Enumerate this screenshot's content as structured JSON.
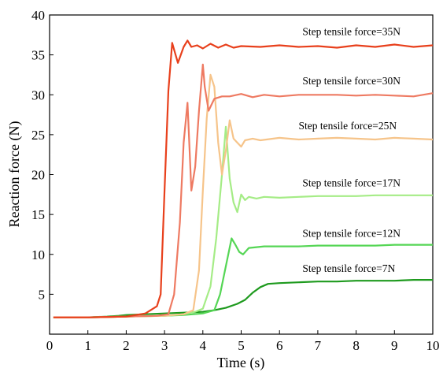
{
  "chart_data": {
    "type": "line",
    "title": "",
    "xlabel": "Time (s)",
    "ylabel": "Reaction force (N)",
    "xlim": [
      0,
      10
    ],
    "ylim": [
      0,
      40
    ],
    "x_ticks": [
      0,
      1,
      2,
      3,
      4,
      5,
      6,
      7,
      8,
      9,
      10
    ],
    "y_ticks": [
      5,
      10,
      15,
      20,
      25,
      30,
      35,
      40
    ],
    "grid": false,
    "legend": "none",
    "series": [
      {
        "name": "Step tensile force=7N",
        "color": "#1e9a1e",
        "x": [
          0.1,
          1.0,
          1.5,
          1.8,
          2.0,
          2.5,
          3.0,
          3.5,
          4.0,
          4.3,
          4.6,
          4.9,
          5.1,
          5.3,
          5.5,
          5.7,
          6.0,
          6.5,
          7.0,
          7.5,
          8.0,
          8.5,
          9.0,
          9.5,
          10.0
        ],
        "y": [
          2.1,
          2.1,
          2.2,
          2.3,
          2.4,
          2.5,
          2.6,
          2.7,
          2.8,
          3.0,
          3.3,
          3.8,
          4.3,
          5.2,
          5.9,
          6.3,
          6.4,
          6.5,
          6.6,
          6.6,
          6.7,
          6.7,
          6.7,
          6.8,
          6.8
        ]
      },
      {
        "name": "Step tensile force=12N",
        "color": "#55d655",
        "x": [
          0.1,
          1.0,
          2.0,
          3.0,
          3.5,
          4.0,
          4.3,
          4.45,
          4.6,
          4.75,
          4.85,
          4.95,
          5.05,
          5.2,
          5.4,
          5.6,
          6.0,
          6.5,
          7.0,
          7.5,
          8.0,
          8.5,
          9.0,
          9.5,
          10.0
        ],
        "y": [
          2.1,
          2.1,
          2.2,
          2.3,
          2.4,
          2.6,
          3.0,
          5.0,
          8.5,
          12.0,
          11.2,
          10.3,
          10.0,
          10.8,
          10.9,
          11.0,
          11.0,
          11.0,
          11.1,
          11.1,
          11.1,
          11.1,
          11.2,
          11.2,
          11.2
        ]
      },
      {
        "name": "Step tensile force=17N",
        "color": "#a5ec86",
        "x": [
          0.1,
          1.0,
          2.0,
          3.0,
          3.5,
          3.8,
          4.0,
          4.2,
          4.35,
          4.5,
          4.6,
          4.7,
          4.8,
          4.9,
          5.0,
          5.1,
          5.2,
          5.4,
          5.6,
          6.0,
          6.5,
          7.0,
          7.5,
          8.0,
          8.5,
          9.0,
          9.5,
          10.0
        ],
        "y": [
          2.1,
          2.1,
          2.2,
          2.3,
          2.5,
          2.8,
          3.2,
          6.0,
          12.0,
          20.0,
          26.0,
          19.5,
          16.5,
          15.3,
          17.5,
          16.8,
          17.2,
          17.0,
          17.2,
          17.1,
          17.2,
          17.3,
          17.3,
          17.3,
          17.4,
          17.4,
          17.4,
          17.4
        ]
      },
      {
        "name": "Step tensile force=25N",
        "color": "#f6c48a",
        "x": [
          0.1,
          1.0,
          2.0,
          3.0,
          3.5,
          3.75,
          3.9,
          4.0,
          4.1,
          4.2,
          4.3,
          4.4,
          4.5,
          4.6,
          4.7,
          4.8,
          4.9,
          5.0,
          5.1,
          5.3,
          5.5,
          6.0,
          6.5,
          7.0,
          7.5,
          8.0,
          8.5,
          9.0,
          9.5,
          10.0
        ],
        "y": [
          2.1,
          2.1,
          2.2,
          2.3,
          2.5,
          3.0,
          8.0,
          18.0,
          27.0,
          32.5,
          31.0,
          24.0,
          20.0,
          23.0,
          26.8,
          24.5,
          24.0,
          23.5,
          24.3,
          24.5,
          24.3,
          24.6,
          24.4,
          24.5,
          24.6,
          24.5,
          24.4,
          24.6,
          24.5,
          24.4
        ]
      },
      {
        "name": "Step tensile force=30N",
        "color": "#ee7a62",
        "x": [
          0.1,
          1.0,
          2.0,
          2.8,
          3.1,
          3.25,
          3.4,
          3.5,
          3.6,
          3.7,
          3.8,
          3.9,
          4.0,
          4.05,
          4.15,
          4.3,
          4.5,
          4.7,
          5.0,
          5.3,
          5.6,
          6.0,
          6.5,
          7.0,
          7.5,
          8.0,
          8.5,
          9.0,
          9.5,
          10.0
        ],
        "y": [
          2.1,
          2.1,
          2.2,
          2.3,
          2.5,
          5.0,
          14.0,
          24.0,
          29.0,
          18.0,
          21.0,
          28.0,
          33.8,
          31.0,
          28.0,
          29.5,
          29.8,
          29.8,
          30.1,
          29.7,
          30.0,
          29.8,
          30.0,
          30.0,
          30.0,
          29.9,
          30.0,
          29.9,
          29.8,
          30.2
        ]
      },
      {
        "name": "Step tensile force=35N",
        "color": "#e8401c",
        "x": [
          0.1,
          1.0,
          2.0,
          2.5,
          2.8,
          2.9,
          3.0,
          3.1,
          3.2,
          3.35,
          3.5,
          3.6,
          3.7,
          3.85,
          4.0,
          4.2,
          4.4,
          4.6,
          4.8,
          5.0,
          5.5,
          6.0,
          6.5,
          7.0,
          7.5,
          8.0,
          8.5,
          9.0,
          9.5,
          10.0
        ],
        "y": [
          2.1,
          2.1,
          2.2,
          2.6,
          3.5,
          5.0,
          18.0,
          30.5,
          36.5,
          34.0,
          36.0,
          36.8,
          36.0,
          36.2,
          35.8,
          36.4,
          35.9,
          36.3,
          35.9,
          36.1,
          36.0,
          36.2,
          36.0,
          36.1,
          35.9,
          36.2,
          36.0,
          36.3,
          36.0,
          36.2
        ]
      }
    ],
    "annotations": [
      {
        "text": "Step tensile force=35N",
        "x": 6.6,
        "y": 37.5
      },
      {
        "text": "Step tensile force=30N",
        "x": 6.6,
        "y": 31.3
      },
      {
        "text": "Step tensile force=25N",
        "x": 6.5,
        "y": 25.7
      },
      {
        "text": "Step tensile force=17N",
        "x": 6.6,
        "y": 18.5
      },
      {
        "text": "Step tensile force=12N",
        "x": 6.6,
        "y": 12.2
      },
      {
        "text": "Step tensile force=7N",
        "x": 6.6,
        "y": 7.8
      }
    ]
  }
}
